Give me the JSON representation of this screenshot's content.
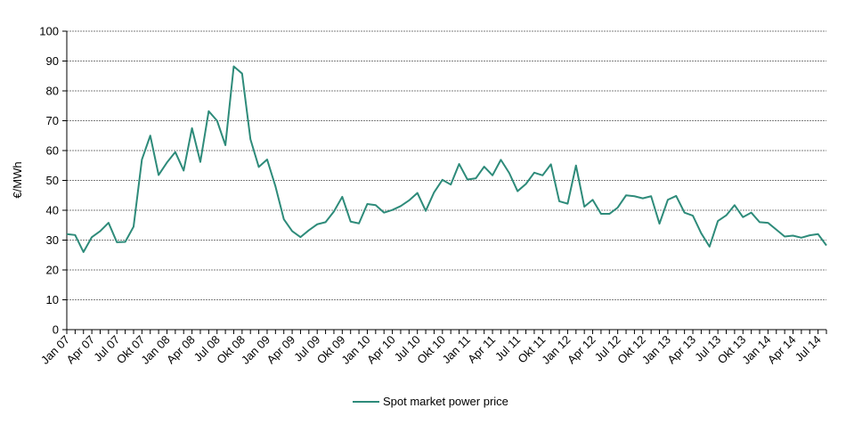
{
  "chart_data": {
    "type": "line",
    "ylabel": "€/MWh",
    "ylim": [
      0,
      100
    ],
    "yticks": [
      0,
      10,
      20,
      30,
      40,
      50,
      60,
      70,
      80,
      90,
      100
    ],
    "grid": "horizontal",
    "legend_position": "bottom-center",
    "colors": {
      "series": "#2e8b7a",
      "grid": "#555555",
      "axis": "#000000"
    },
    "xtick_labels": [
      "Jan 07",
      "Apr 07",
      "Jul 07",
      "Okt 07",
      "Jan 08",
      "Apr 08",
      "Jul 08",
      "Okt 08",
      "Jan 09",
      "Apr 09",
      "Jul 09",
      "Okt 09",
      "Jan 10",
      "Apr 10",
      "Jul 10",
      "Okt 10",
      "Jan 11",
      "Apr 11",
      "Jul 11",
      "Okt 11",
      "Jan 12",
      "Apr 12",
      "Jul 12",
      "Okt 12",
      "Jan 13",
      "Apr 13",
      "Jul 13",
      "Okt 13",
      "Jan 14",
      "Apr 14",
      "Jul 14"
    ],
    "x": [
      "2007-01",
      "2007-02",
      "2007-03",
      "2007-04",
      "2007-05",
      "2007-06",
      "2007-07",
      "2007-08",
      "2007-09",
      "2007-10",
      "2007-11",
      "2007-12",
      "2008-01",
      "2008-02",
      "2008-03",
      "2008-04",
      "2008-05",
      "2008-06",
      "2008-07",
      "2008-08",
      "2008-09",
      "2008-10",
      "2008-11",
      "2008-12",
      "2009-01",
      "2009-02",
      "2009-03",
      "2009-04",
      "2009-05",
      "2009-06",
      "2009-07",
      "2009-08",
      "2009-09",
      "2009-10",
      "2009-11",
      "2009-12",
      "2010-01",
      "2010-02",
      "2010-03",
      "2010-04",
      "2010-05",
      "2010-06",
      "2010-07",
      "2010-08",
      "2010-09",
      "2010-10",
      "2010-11",
      "2010-12",
      "2011-01",
      "2011-02",
      "2011-03",
      "2011-04",
      "2011-05",
      "2011-06",
      "2011-07",
      "2011-08",
      "2011-09",
      "2011-10",
      "2011-11",
      "2011-12",
      "2012-01",
      "2012-02",
      "2012-03",
      "2012-04",
      "2012-05",
      "2012-06",
      "2012-07",
      "2012-08",
      "2012-09",
      "2012-10",
      "2012-11",
      "2012-12",
      "2013-01",
      "2013-02",
      "2013-03",
      "2013-04",
      "2013-05",
      "2013-06",
      "2013-07",
      "2013-08",
      "2013-09",
      "2013-10",
      "2013-11",
      "2013-12",
      "2014-01",
      "2014-02",
      "2014-03",
      "2014-04",
      "2014-05",
      "2014-06",
      "2014-07",
      "2014-08"
    ],
    "series": [
      {
        "name": "Spot market power price",
        "values": [
          32,
          31.7,
          26,
          31,
          33,
          35.8,
          29.3,
          29.4,
          34.5,
          57,
          65,
          51.8,
          56,
          59.5,
          53.3,
          67.5,
          56.2,
          73.2,
          70,
          61.8,
          88.2,
          85.8,
          63.8,
          54.5,
          57,
          48,
          37,
          33,
          31,
          33.3,
          35.3,
          36,
          39.6,
          44.5,
          36.2,
          35.6,
          42.1,
          41.7,
          39.2,
          40.1,
          41.4,
          43.3,
          45.8,
          39.8,
          46,
          50.2,
          48.6,
          55.5,
          50.3,
          50.7,
          54.6,
          51.7,
          56.9,
          52.5,
          46.4,
          48.8,
          52.6,
          51.7,
          55.4,
          43,
          42.2,
          55,
          41.2,
          43.5,
          38.8,
          38.8,
          40.9,
          45,
          44.7,
          44,
          44.7,
          35.5,
          43.5,
          44.8,
          39.2,
          38.2,
          32.3,
          27.8,
          36.4,
          38.3,
          41.7,
          37.7,
          39.2,
          36,
          35.8,
          33.5,
          31.2,
          31.5,
          30.8,
          31.6,
          32,
          28.2
        ]
      }
    ]
  }
}
